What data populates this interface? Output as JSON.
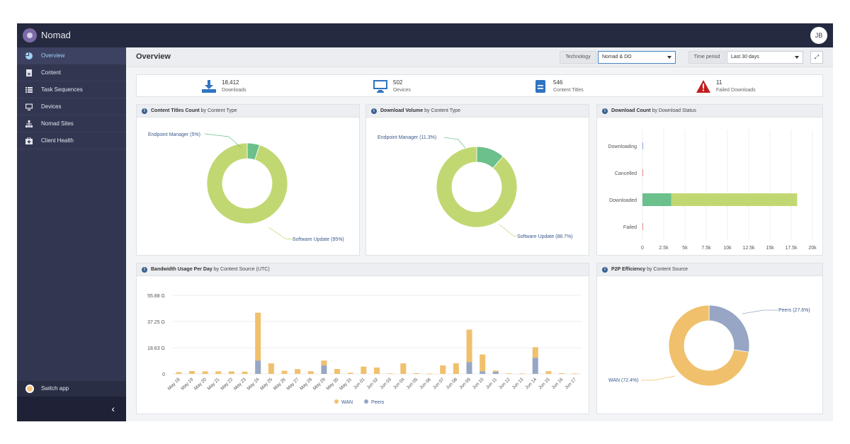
{
  "app": {
    "title": "Nomad",
    "user_initials": "JB"
  },
  "sidebar": {
    "items": [
      {
        "label": "Overview",
        "icon": "pie-chart-icon"
      },
      {
        "label": "Content",
        "icon": "document-icon"
      },
      {
        "label": "Task Sequences",
        "icon": "list-icon"
      },
      {
        "label": "Devices",
        "icon": "monitor-icon"
      },
      {
        "label": "Nomad Sites",
        "icon": "sitemap-icon"
      },
      {
        "label": "Client Health",
        "icon": "medkit-icon"
      }
    ],
    "switch_app": "Switch app",
    "collapse_glyph": "‹"
  },
  "header": {
    "title": "Overview",
    "technology_label": "Technology",
    "technology_value": "Nomad & DO",
    "time_period_label": "Time period",
    "time_period_value": "Last 30 days",
    "expand_glyph": "⤢"
  },
  "stats": [
    {
      "value": "18,412",
      "label": "Downloads",
      "icon": "download-icon"
    },
    {
      "value": "502",
      "label": "Devices",
      "icon": "monitor-icon"
    },
    {
      "value": "546",
      "label": "Content Titles",
      "icon": "document-icon"
    },
    {
      "value": "11",
      "label": "Failed Downloads",
      "icon": "warning-icon"
    }
  ],
  "panels": {
    "content_titles": {
      "title": "Content Titles Count",
      "subtitle": "by Content Type"
    },
    "download_volume": {
      "title": "Download Volume",
      "subtitle": "by Content Type"
    },
    "download_count": {
      "title": "Download Count",
      "subtitle": "by Download Status"
    },
    "bandwidth": {
      "title": "Bandwidth Usage Per Day",
      "subtitle": "by Content Source (UTC)"
    },
    "p2p": {
      "title": "P2P Efficiency",
      "subtitle": "by Content Source"
    }
  },
  "colors": {
    "endpoint": "#6cc08b",
    "software": "#c1d872",
    "wan": "#f0c06c",
    "peers": "#96a6c4",
    "downloading": "#8aa7d8",
    "cancelled": "#e58b8b"
  },
  "chart_data": [
    {
      "type": "pie",
      "labels": [
        "Endpoint Manager (5%)",
        "Software Update (95%)"
      ],
      "values": [
        5,
        95
      ]
    },
    {
      "type": "pie",
      "labels": [
        "Endpoint Manager (11.3%)",
        "Software Update (88.7%)"
      ],
      "values": [
        11.3,
        88.7
      ]
    },
    {
      "type": "bar",
      "orientation": "horizontal",
      "categories": [
        "Downloading",
        "Cancelled",
        "Downloaded",
        "Failed"
      ],
      "series": [
        {
          "values": [
            30,
            20,
            3400,
            11
          ]
        },
        {
          "values": [
            0,
            0,
            14800,
            0
          ]
        }
      ],
      "xticks": [
        "0",
        "2.5k",
        "5k",
        "7.5k",
        "10k",
        "12.5k",
        "15k",
        "17.5k",
        "20k"
      ],
      "xlim": [
        0,
        20000
      ],
      "grid": true
    },
    {
      "type": "bar",
      "stacked": true,
      "categories": [
        "May 18",
        "May 19",
        "May 20",
        "May 21",
        "May 22",
        "May 23",
        "May 24",
        "May 25",
        "May 26",
        "May 27",
        "May 28",
        "May 29",
        "May 30",
        "May 31",
        "Jun 01",
        "Jun 02",
        "Jun 03",
        "Jun 04",
        "Jun 05",
        "Jun 06",
        "Jun 07",
        "Jun 08",
        "Jun 09",
        "Jun 10",
        "Jun 11",
        "Jun 12",
        "Jun 13",
        "Jun 14",
        "Jun 15",
        "Jun 16",
        "Jun 17"
      ],
      "series": [
        {
          "name": "WAN",
          "values": [
            1.2,
            2.0,
            1.8,
            1.8,
            1.8,
            1.6,
            34.0,
            7.5,
            2.2,
            3.4,
            1.9,
            3.5,
            3.5,
            0.8,
            5.2,
            4.5,
            0.4,
            7.5,
            0.5,
            0.2,
            6.0,
            7.5,
            23.0,
            12.0,
            0.8,
            0.4,
            0.3,
            7.5,
            1.9,
            0.5,
            0.3
          ]
        },
        {
          "name": "Peers",
          "values": [
            0,
            0,
            0,
            0,
            0,
            0,
            9.5,
            0,
            0,
            0,
            0,
            6.0,
            0,
            0,
            0,
            0,
            0,
            0,
            0,
            0,
            0,
            0,
            8.5,
            1.8,
            1.5,
            0,
            0,
            11.5,
            0,
            0,
            0
          ]
        }
      ],
      "yticks": [
        "0",
        "18.63 G",
        "37.25 G",
        "55.88 G"
      ],
      "ylim": [
        0,
        55.88
      ],
      "legend": "bottom",
      "grid": true
    },
    {
      "type": "pie",
      "labels": [
        "Peers (27.6%)",
        "WAN (72.4%)"
      ],
      "values": [
        27.6,
        72.4
      ]
    }
  ]
}
